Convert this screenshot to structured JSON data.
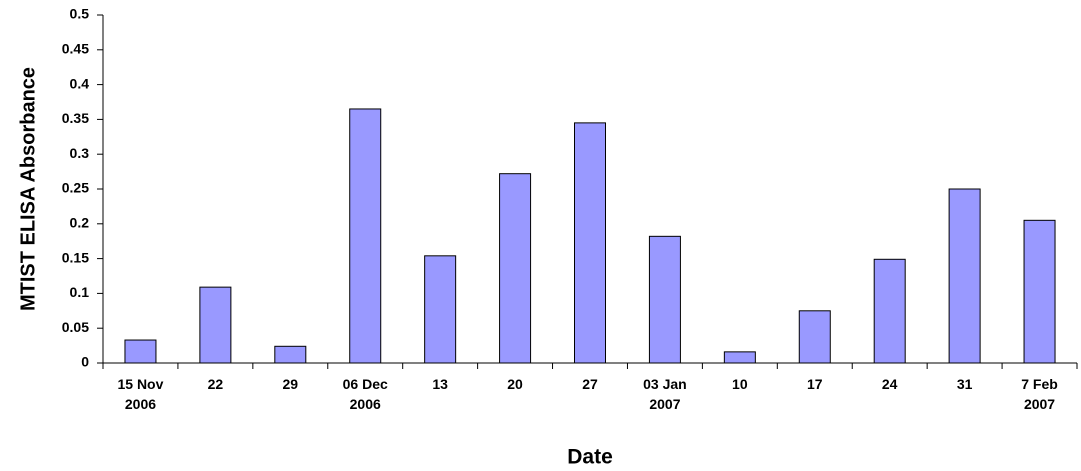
{
  "chart_data": {
    "type": "bar",
    "y_label": "MTIST ELISA Absorbance",
    "x_label": "Date",
    "categories": [
      "15 Nov\n2006",
      "22",
      "29",
      "06 Dec\n2006",
      "13",
      "20",
      "27",
      "03 Jan\n2007",
      "10",
      "17",
      "24",
      "31",
      "7  Feb\n2007"
    ],
    "values": [
      0.033,
      0.109,
      0.024,
      0.365,
      0.154,
      0.272,
      0.345,
      0.182,
      0.016,
      0.075,
      0.149,
      0.25,
      0.205
    ],
    "color": "#9999ff",
    "ylim": [
      0,
      0.5
    ],
    "yticks": [
      0,
      0.05,
      0.1,
      0.15,
      0.2,
      0.25,
      0.3,
      0.35,
      0.4,
      0.45,
      0.5
    ],
    "grid": false
  }
}
